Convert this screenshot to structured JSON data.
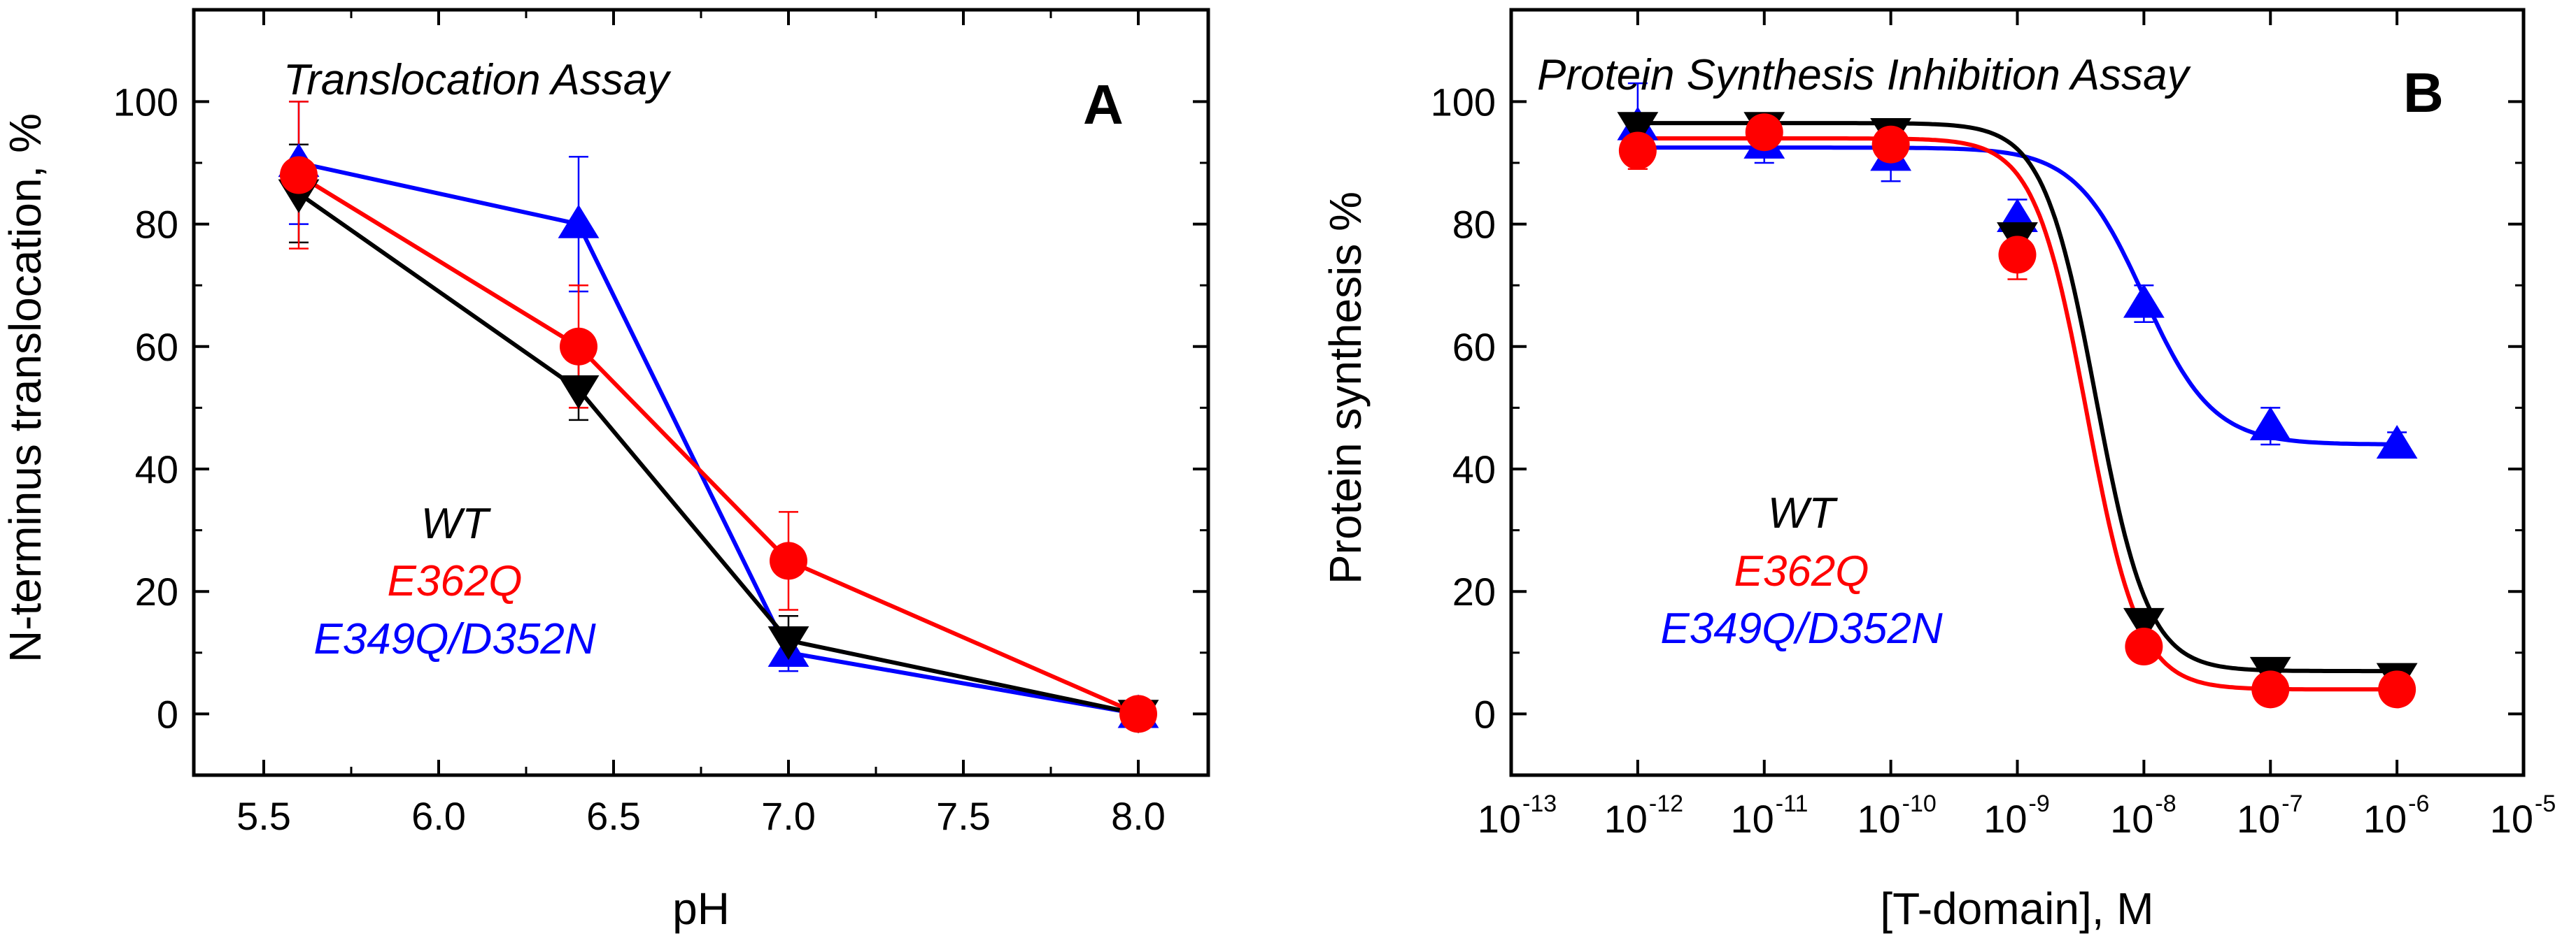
{
  "chart_data": [
    {
      "type": "line",
      "panel_letter": "A",
      "title": "Translocation Assay",
      "xlabel": "pH",
      "ylabel": "N-terminus translocation, %",
      "xlim": [
        5.3,
        8.2
      ],
      "ylim": [
        -10,
        115
      ],
      "x_ticks": [
        "5.5",
        "6.0",
        "6.5",
        "7.0",
        "7.5",
        "8.0"
      ],
      "y_ticks": [
        "0",
        "20",
        "40",
        "60",
        "80",
        "100"
      ],
      "grid": false,
      "legend": {
        "position": "lower-left",
        "entries": [
          "WT",
          "E362Q",
          "E349Q/D352N"
        ]
      },
      "series": [
        {
          "name": "WT",
          "color": "#000000",
          "marker": "triangle-down",
          "x": [
            5.6,
            6.4,
            7.0,
            8.0
          ],
          "y": [
            85,
            53,
            12,
            0
          ],
          "err": [
            8,
            5,
            4,
            1
          ]
        },
        {
          "name": "E362Q",
          "color": "#ff0000",
          "marker": "circle",
          "x": [
            5.6,
            6.4,
            7.0,
            8.0
          ],
          "y": [
            88,
            60,
            25,
            0
          ],
          "err": [
            12,
            10,
            8,
            1
          ]
        },
        {
          "name": "E349Q/D352N",
          "color": "#0000ff",
          "marker": "triangle-up",
          "x": [
            5.6,
            6.4,
            7.0,
            8.0
          ],
          "y": [
            90,
            80,
            10,
            0
          ],
          "err": [
            10,
            11,
            3,
            1
          ]
        }
      ]
    },
    {
      "type": "scatter",
      "panel_letter": "B",
      "title": "Protein Synthesis Inhibition Assay",
      "xlabel": "[T-domain], M",
      "ylabel": "Protein synthesis %",
      "x_scale": "log",
      "xlim_exp": [
        -13,
        -5
      ],
      "ylim": [
        -10,
        115
      ],
      "x_tick_base": "10",
      "x_tick_exponents": [
        "-13",
        "-12",
        "-11",
        "-10",
        "-9",
        "-8",
        "-7",
        "-6",
        "-5"
      ],
      "y_ticks": [
        "0",
        "20",
        "40",
        "60",
        "80",
        "100"
      ],
      "grid": false,
      "legend": {
        "position": "lower-left",
        "entries": [
          "WT",
          "E362Q",
          "E349Q/D352N"
        ]
      },
      "series": [
        {
          "name": "WT",
          "color": "#000000",
          "marker": "triangle-down",
          "log_x": [
            -12,
            -11,
            -10,
            -9,
            -8,
            -7,
            -6
          ],
          "y": [
            96,
            96,
            95,
            78,
            15,
            7,
            6
          ],
          "err": [
            2,
            2,
            2,
            3,
            2,
            2,
            2
          ],
          "fit": {
            "top": 96.5,
            "bottom": 7,
            "log_ec50": -8.38,
            "hill": 2.1
          }
        },
        {
          "name": "E362Q",
          "color": "#ff0000",
          "marker": "circle",
          "log_x": [
            -12,
            -11,
            -10,
            -9,
            -8,
            -7,
            -6
          ],
          "y": [
            92,
            95,
            93,
            75,
            11,
            4,
            4
          ],
          "err": [
            3,
            2,
            3,
            4,
            2,
            1,
            1
          ],
          "fit": {
            "top": 94,
            "bottom": 4,
            "log_ec50": -8.45,
            "hill": 2.1
          }
        },
        {
          "name": "E349Q/D352N",
          "color": "#0000ff",
          "marker": "triangle-up",
          "log_x": [
            -12,
            -11,
            -10,
            -9,
            -8,
            -7,
            -6
          ],
          "y": [
            96,
            93,
            91,
            81,
            67,
            47,
            44
          ],
          "err": [
            7,
            3,
            4,
            3,
            3,
            3,
            2
          ],
          "fit": {
            "top": 92.5,
            "bottom": 44,
            "log_ec50": -8.0,
            "hill": 1.6
          }
        }
      ]
    }
  ]
}
